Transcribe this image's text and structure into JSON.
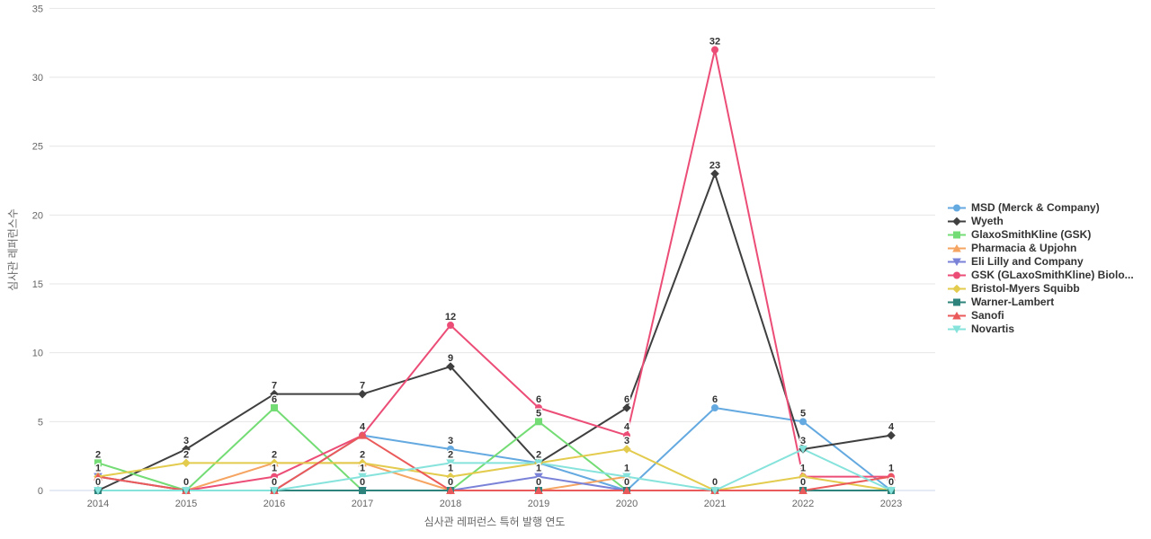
{
  "chart_data": {
    "type": "line",
    "title": "",
    "xlabel": "심사관 레퍼런스 특허 발행 연도",
    "ylabel": "심사관 레퍼런스수",
    "x": [
      2014,
      2015,
      2016,
      2017,
      2018,
      2019,
      2020,
      2021,
      2022,
      2023
    ],
    "ylim": [
      0,
      35
    ],
    "yticks": [
      0,
      5,
      10,
      15,
      20,
      25,
      30,
      35
    ],
    "grid": "horizontal",
    "legend_position": "right",
    "data_labels": "unique value per year shown in bold above points",
    "series": [
      {
        "name": "MSD (Merck & Company)",
        "color": "#64A9E0",
        "marker": "circle",
        "values": [
          0,
          0,
          0,
          4,
          3,
          2,
          0,
          6,
          5,
          0
        ]
      },
      {
        "name": "Wyeth",
        "color": "#3F3F3F",
        "marker": "diamond",
        "values": [
          0,
          3,
          7,
          7,
          9,
          2,
          6,
          23,
          3,
          4
        ]
      },
      {
        "name": "GlaxoSmithKline (GSK)",
        "color": "#74DC74",
        "marker": "square",
        "values": [
          2,
          0,
          6,
          0,
          0,
          5,
          0,
          0,
          0,
          0
        ]
      },
      {
        "name": "Pharmacia & Upjohn",
        "color": "#F5A462",
        "marker": "triangle",
        "values": [
          1,
          0,
          2,
          2,
          0,
          0,
          1,
          null,
          null,
          null
        ]
      },
      {
        "name": "Eli Lilly and Company",
        "color": "#7A82D8",
        "marker": "triangle-down",
        "values": [
          1,
          0,
          0,
          0,
          0,
          1,
          0,
          null,
          null,
          null
        ]
      },
      {
        "name": "GSK (GLaxoSmithKline) Biolo...",
        "color": "#EC4D77",
        "marker": "circle",
        "values": [
          null,
          0,
          1,
          4,
          12,
          6,
          4,
          32,
          1,
          1
        ]
      },
      {
        "name": "Bristol-Myers Squibb",
        "color": "#E3CB4E",
        "marker": "diamond",
        "values": [
          1,
          2,
          2,
          2,
          1,
          2,
          3,
          0,
          1,
          0
        ]
      },
      {
        "name": "Warner-Lambert",
        "color": "#2E847C",
        "marker": "square",
        "values": [
          0,
          0,
          0,
          0,
          0,
          0,
          0,
          0,
          0,
          0
        ]
      },
      {
        "name": "Sanofi",
        "color": "#EB5A5A",
        "marker": "triangle",
        "values": [
          1,
          0,
          0,
          4,
          0,
          0,
          0,
          0,
          0,
          1
        ]
      },
      {
        "name": "Novartis",
        "color": "#86E3DC",
        "marker": "triangle-down",
        "values": [
          0,
          0,
          0,
          1,
          2,
          2,
          1,
          0,
          3,
          0
        ]
      }
    ],
    "style": {
      "background": "#ffffff",
      "grid_color": "#e6e6e6",
      "axis_line_color": "#ccd6eb",
      "tick_label_color": "#666666",
      "data_label_color": "#333333"
    }
  }
}
